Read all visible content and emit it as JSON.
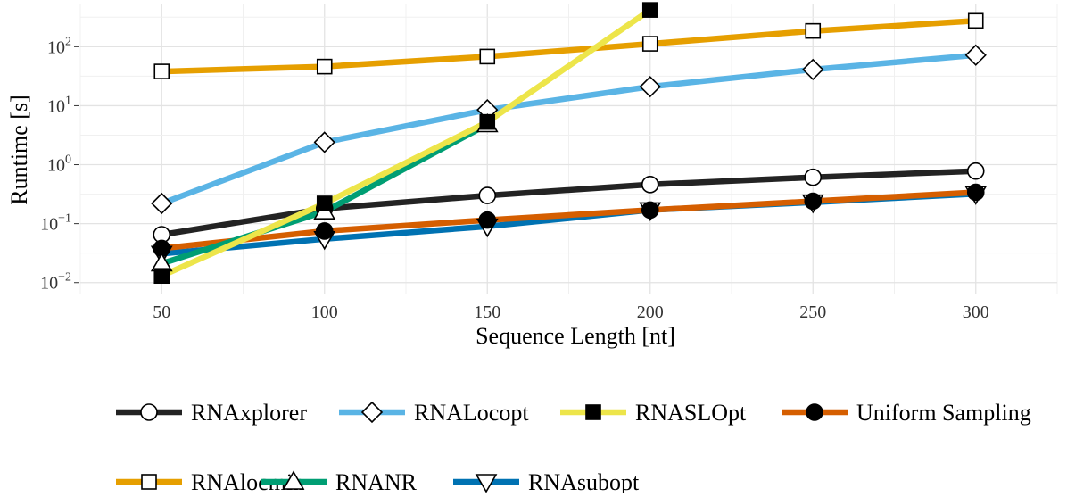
{
  "chart_data": {
    "type": "line",
    "title": "",
    "xlabel": "Sequence Length [nt]",
    "ylabel": "Runtime [s]",
    "x_scale": "linear",
    "y_scale": "log10",
    "xlim": [
      25,
      325
    ],
    "ylim": [
      0.0063,
      520
    ],
    "x": [
      50,
      100,
      150,
      200,
      250,
      300
    ],
    "x_tick_labels": [
      "50",
      "100",
      "150",
      "200",
      "250",
      "300"
    ],
    "y_ticks": [
      {
        "value": 0.01,
        "base": "10",
        "exp": "−2"
      },
      {
        "value": 0.1,
        "base": "10",
        "exp": "−1"
      },
      {
        "value": 1,
        "base": "10",
        "exp": "0"
      },
      {
        "value": 10,
        "base": "10",
        "exp": "1"
      },
      {
        "value": 100,
        "base": "10",
        "exp": "2"
      }
    ],
    "grid": true,
    "legend_position": "bottom",
    "series": [
      {
        "name": "RNAxplorer",
        "color": "#232323",
        "marker": "circle-open",
        "points": [
          [
            50,
            0.065
          ],
          [
            100,
            0.18
          ],
          [
            150,
            0.3
          ],
          [
            200,
            0.46
          ],
          [
            250,
            0.61
          ],
          [
            300,
            0.78
          ]
        ]
      },
      {
        "name": "RNALocopt",
        "color": "#5ab4e5",
        "marker": "diamond-open",
        "points": [
          [
            50,
            0.22
          ],
          [
            100,
            2.4
          ],
          [
            150,
            8.5
          ],
          [
            200,
            21
          ],
          [
            250,
            41
          ],
          [
            300,
            72
          ]
        ]
      },
      {
        "name": "RNASLOpt",
        "color": "#ede54a",
        "marker": "square-filled",
        "points": [
          [
            50,
            0.013
          ],
          [
            100,
            0.22
          ],
          [
            150,
            5.3
          ],
          [
            200,
            420
          ]
        ]
      },
      {
        "name": "Uniform Sampling",
        "color": "#d55e00",
        "marker": "circle-filled",
        "points": [
          [
            50,
            0.038
          ],
          [
            100,
            0.075
          ],
          [
            150,
            0.115
          ],
          [
            200,
            0.17
          ],
          [
            250,
            0.24
          ],
          [
            300,
            0.34
          ]
        ]
      },
      {
        "name": "RNAlocmin",
        "color": "#e69f00",
        "marker": "square-open",
        "points": [
          [
            50,
            38
          ],
          [
            100,
            46
          ],
          [
            150,
            68
          ],
          [
            200,
            112
          ],
          [
            250,
            185
          ],
          [
            300,
            275
          ]
        ]
      },
      {
        "name": "RNANR",
        "color": "#009e73",
        "marker": "triangle-up-open",
        "points": [
          [
            50,
            0.021
          ],
          [
            100,
            0.16
          ],
          [
            150,
            4.8
          ]
        ]
      },
      {
        "name": "RNAsubopt",
        "color": "#0072b2",
        "marker": "triangle-down-open",
        "points": [
          [
            50,
            0.031
          ],
          [
            100,
            0.055
          ],
          [
            150,
            0.09
          ],
          [
            200,
            0.17
          ],
          [
            250,
            0.23
          ],
          [
            300,
            0.32
          ]
        ]
      }
    ]
  }
}
